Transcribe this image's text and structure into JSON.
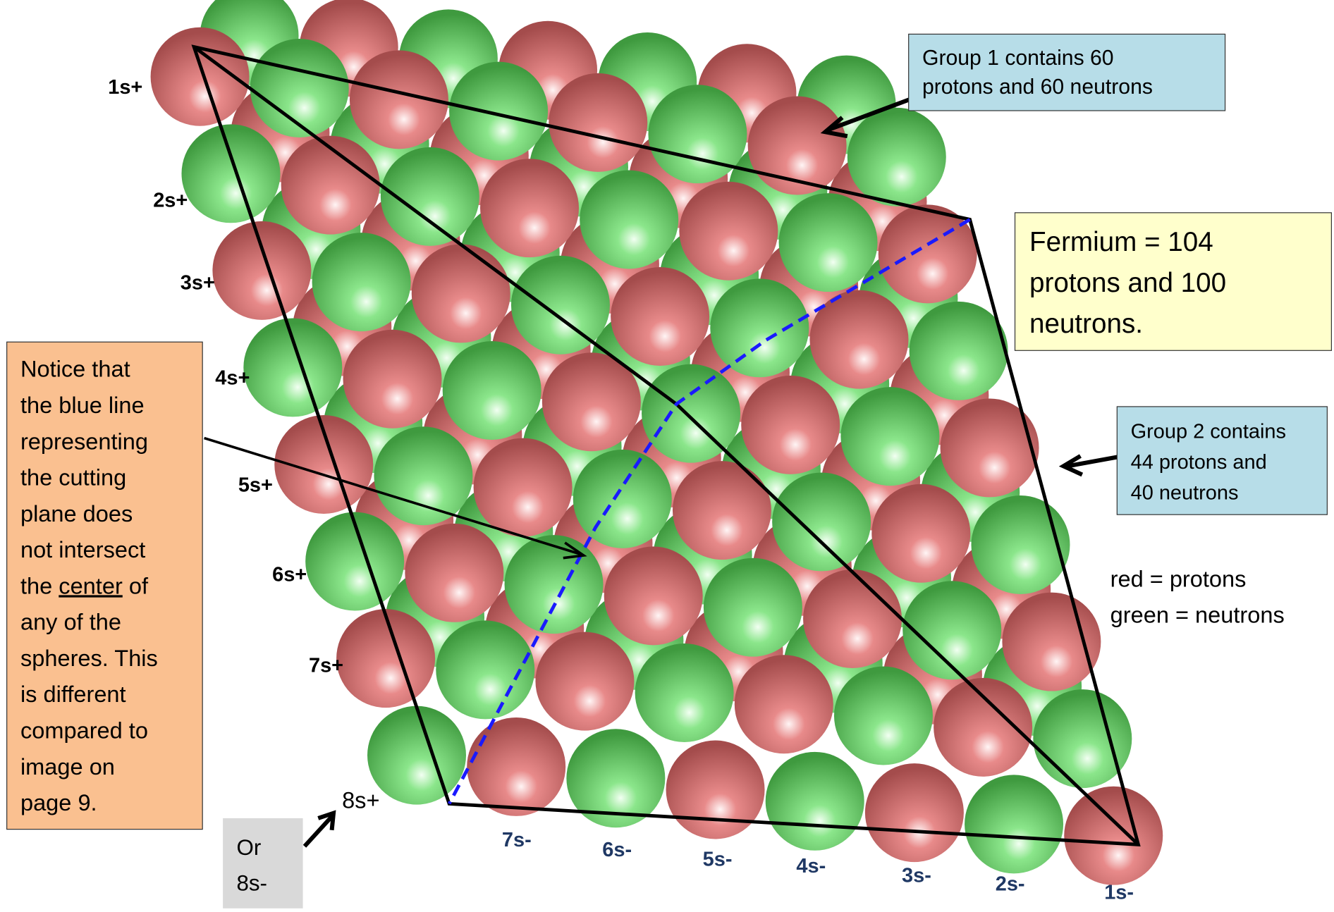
{
  "plus_labels": [
    "1s+",
    "2s+",
    "3s+",
    "4s+",
    "5s+",
    "6s+",
    "7s+"
  ],
  "eight_plus": "8s+",
  "minus_labels": [
    "7s-",
    "6s-",
    "5s-",
    "4s-",
    "3s-",
    "2s-",
    "1s-"
  ],
  "or_box": [
    "Or",
    "8s-"
  ],
  "group1": [
    "Group 1 contains 60",
    "protons and 60 neutrons"
  ],
  "group2": [
    "Group 2 contains",
    "44 protons and",
    "40 neutrons"
  ],
  "fermium": [
    "Fermium = 104",
    "protons and 100",
    "neutrons."
  ],
  "legend": [
    "red = protons",
    "green = neutrons"
  ],
  "notice": {
    "lines_before": [
      "Notice that",
      "the blue line",
      "representing",
      "the cutting",
      "plane does",
      "not intersect"
    ],
    "center_line": [
      "the ",
      "center",
      " of"
    ],
    "lines_after": [
      "any of the",
      "spheres. This",
      "is different",
      "compared to",
      "image on",
      "page 9."
    ]
  }
}
